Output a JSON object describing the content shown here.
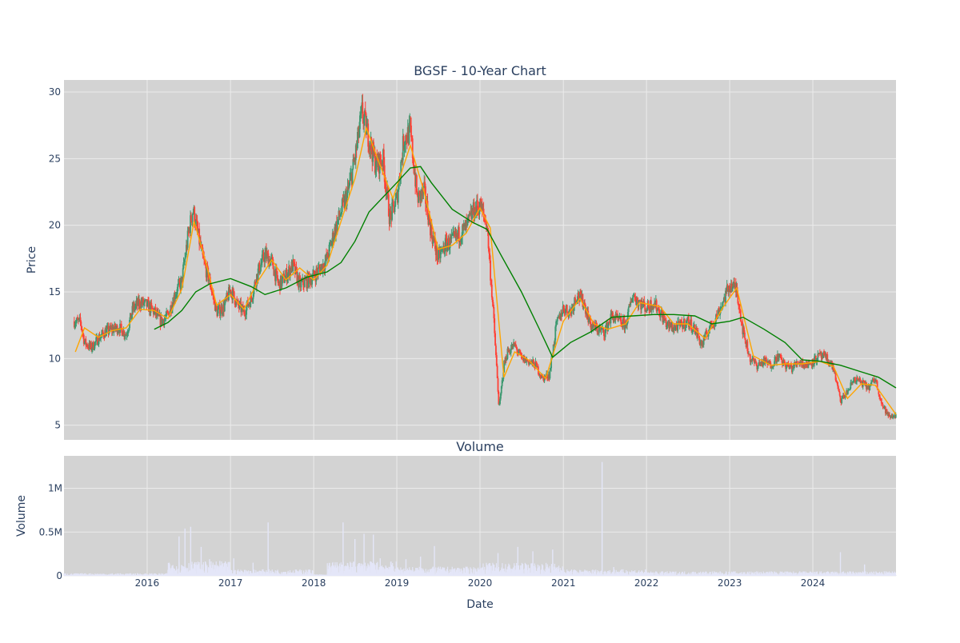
{
  "figure": {
    "title": "BGSF - 10-Year Chart",
    "subplot_title": "Volume"
  },
  "colors": {
    "plot_bg": "#d3d3d3",
    "grid": "#ebebeb",
    "text": "#2a3f5f",
    "up_candle": "#3d9970",
    "down_candle": "#ff4136",
    "ma_short": "orange",
    "ma_long": "green",
    "volume": "#e4e6f8"
  },
  "chart_data": [
    {
      "type": "candlestick",
      "ylabel": "Price",
      "xlabel": "",
      "xlim": [
        "2015-01-01",
        "2024-12-31"
      ],
      "ylim": [
        3.9,
        30.9
      ],
      "yticks": [
        5,
        10,
        15,
        20,
        25,
        30
      ],
      "xticks": [
        "2016-01-01",
        "2017-01-01",
        "2018-01-01",
        "2019-01-01",
        "2020-01-01",
        "2021-01-01",
        "2022-01-01",
        "2023-01-01",
        "2024-01-01"
      ],
      "xtick_labels": [
        "2016",
        "2017",
        "2018",
        "2019",
        "2020",
        "2021",
        "2022",
        "2023",
        "2024"
      ],
      "grid": true,
      "price_path": [
        [
          "2015-01-01",
          13.0
        ],
        [
          "2015-02-15",
          12.8
        ],
        [
          "2015-03-15",
          12.7
        ],
        [
          "2015-04-01",
          11.2
        ],
        [
          "2015-05-01",
          10.8
        ],
        [
          "2015-06-01",
          11.5
        ],
        [
          "2015-07-01",
          12.0
        ],
        [
          "2015-08-01",
          12.2
        ],
        [
          "2015-09-01",
          12.3
        ],
        [
          "2015-10-01",
          11.8
        ],
        [
          "2015-11-01",
          13.8
        ],
        [
          "2015-12-01",
          14.2
        ],
        [
          "2016-01-01",
          14.0
        ],
        [
          "2016-02-01",
          13.5
        ],
        [
          "2016-03-01",
          12.8
        ],
        [
          "2016-04-01",
          13.2
        ],
        [
          "2016-05-01",
          14.8
        ],
        [
          "2016-06-01",
          15.8
        ],
        [
          "2016-07-01",
          19.5
        ],
        [
          "2016-07-20",
          21.2
        ],
        [
          "2016-08-15",
          19.0
        ],
        [
          "2016-09-01",
          17.5
        ],
        [
          "2016-10-01",
          15.8
        ],
        [
          "2016-11-01",
          13.5
        ],
        [
          "2016-12-01",
          13.8
        ],
        [
          "2017-01-01",
          15.2
        ],
        [
          "2017-02-01",
          14.0
        ],
        [
          "2017-03-01",
          13.5
        ],
        [
          "2017-04-01",
          14.5
        ],
        [
          "2017-05-01",
          16.5
        ],
        [
          "2017-06-01",
          17.8
        ],
        [
          "2017-07-01",
          17.2
        ],
        [
          "2017-08-01",
          15.5
        ],
        [
          "2017-09-01",
          16.2
        ],
        [
          "2017-10-01",
          17.0
        ],
        [
          "2017-11-01",
          15.5
        ],
        [
          "2017-12-01",
          15.8
        ],
        [
          "2018-01-01",
          16.2
        ],
        [
          "2018-02-01",
          16.8
        ],
        [
          "2018-03-01",
          17.5
        ],
        [
          "2018-04-01",
          19.5
        ],
        [
          "2018-05-01",
          21.0
        ],
        [
          "2018-06-01",
          22.5
        ],
        [
          "2018-07-01",
          25.0
        ],
        [
          "2018-08-01",
          28.5
        ],
        [
          "2018-09-01",
          26.5
        ],
        [
          "2018-10-01",
          24.5
        ],
        [
          "2018-11-01",
          25.0
        ],
        [
          "2018-12-01",
          20.5
        ],
        [
          "2019-01-01",
          22.0
        ],
        [
          "2019-02-01",
          26.5
        ],
        [
          "2019-03-01",
          27.0
        ],
        [
          "2019-04-01",
          22.0
        ],
        [
          "2019-05-01",
          22.5
        ],
        [
          "2019-06-01",
          19.5
        ],
        [
          "2019-07-01",
          17.5
        ],
        [
          "2019-08-01",
          18.5
        ],
        [
          "2019-09-01",
          18.8
        ],
        [
          "2019-10-01",
          19.3
        ],
        [
          "2019-11-01",
          19.8
        ],
        [
          "2019-12-01",
          21.0
        ],
        [
          "2020-01-01",
          21.5
        ],
        [
          "2020-02-01",
          20.0
        ],
        [
          "2020-03-01",
          13.0
        ],
        [
          "2020-03-25",
          6.2
        ],
        [
          "2020-04-15",
          9.5
        ],
        [
          "2020-05-01",
          10.5
        ],
        [
          "2020-06-01",
          11.0
        ],
        [
          "2020-07-01",
          10.0
        ],
        [
          "2020-08-01",
          9.8
        ],
        [
          "2020-09-01",
          9.5
        ],
        [
          "2020-10-01",
          8.5
        ],
        [
          "2020-11-01",
          8.8
        ],
        [
          "2020-12-01",
          12.5
        ],
        [
          "2021-01-01",
          13.8
        ],
        [
          "2021-02-01",
          13.5
        ],
        [
          "2021-03-01",
          14.8
        ],
        [
          "2021-04-01",
          14.2
        ],
        [
          "2021-05-01",
          12.5
        ],
        [
          "2021-06-01",
          12.2
        ],
        [
          "2021-07-01",
          12.0
        ],
        [
          "2021-08-01",
          13.2
        ],
        [
          "2021-09-01",
          12.8
        ],
        [
          "2021-10-01",
          12.5
        ],
        [
          "2021-11-01",
          14.8
        ],
        [
          "2021-12-01",
          14.2
        ],
        [
          "2022-01-01",
          13.8
        ],
        [
          "2022-02-01",
          14.2
        ],
        [
          "2022-03-01",
          13.5
        ],
        [
          "2022-04-01",
          12.5
        ],
        [
          "2022-05-01",
          12.3
        ],
        [
          "2022-06-01",
          12.5
        ],
        [
          "2022-07-01",
          12.8
        ],
        [
          "2022-08-01",
          12.2
        ],
        [
          "2022-09-01",
          11.0
        ],
        [
          "2022-10-01",
          12.2
        ],
        [
          "2022-11-01",
          13.0
        ],
        [
          "2022-12-01",
          14.2
        ],
        [
          "2023-01-01",
          15.5
        ],
        [
          "2023-02-01",
          15.2
        ],
        [
          "2023-03-01",
          12.0
        ],
        [
          "2023-04-01",
          10.0
        ],
        [
          "2023-05-01",
          9.5
        ],
        [
          "2023-06-01",
          9.8
        ],
        [
          "2023-07-01",
          9.5
        ],
        [
          "2023-08-01",
          10.2
        ],
        [
          "2023-09-01",
          9.5
        ],
        [
          "2023-10-01",
          9.3
        ],
        [
          "2023-11-01",
          9.8
        ],
        [
          "2023-12-01",
          9.5
        ],
        [
          "2024-01-01",
          9.8
        ],
        [
          "2024-02-01",
          10.2
        ],
        [
          "2024-03-01",
          10.0
        ],
        [
          "2024-04-01",
          9.3
        ],
        [
          "2024-05-01",
          6.8
        ],
        [
          "2024-06-01",
          7.5
        ],
        [
          "2024-07-01",
          8.5
        ],
        [
          "2024-08-01",
          8.2
        ],
        [
          "2024-09-01",
          7.8
        ],
        [
          "2024-10-01",
          8.5
        ],
        [
          "2024-11-01",
          6.5
        ],
        [
          "2024-12-01",
          5.6
        ],
        [
          "2024-12-31",
          5.8
        ]
      ],
      "ma_short_path": [
        [
          "2015-02-20",
          10.5
        ],
        [
          "2015-04-01",
          12.3
        ],
        [
          "2015-06-01",
          11.6
        ],
        [
          "2015-08-01",
          12.1
        ],
        [
          "2015-10-01",
          12.3
        ],
        [
          "2015-12-01",
          13.7
        ],
        [
          "2016-02-01",
          13.6
        ],
        [
          "2016-04-01",
          13.0
        ],
        [
          "2016-06-01",
          15.2
        ],
        [
          "2016-07-25",
          20.3
        ],
        [
          "2016-09-15",
          17.2
        ],
        [
          "2016-11-01",
          14.0
        ],
        [
          "2017-01-01",
          14.8
        ],
        [
          "2017-03-01",
          13.7
        ],
        [
          "2017-05-01",
          15.8
        ],
        [
          "2017-07-01",
          17.4
        ],
        [
          "2017-09-01",
          15.9
        ],
        [
          "2017-11-01",
          16.8
        ],
        [
          "2018-01-01",
          15.9
        ],
        [
          "2018-03-01",
          17.0
        ],
        [
          "2018-05-01",
          20.3
        ],
        [
          "2018-07-01",
          23.5
        ],
        [
          "2018-08-20",
          27.3
        ],
        [
          "2018-10-15",
          24.7
        ],
        [
          "2018-12-15",
          22.0
        ],
        [
          "2019-03-01",
          26.0
        ],
        [
          "2019-05-01",
          22.5
        ],
        [
          "2019-07-01",
          18.2
        ],
        [
          "2019-09-01",
          18.5
        ],
        [
          "2019-11-01",
          19.4
        ],
        [
          "2020-01-01",
          21.3
        ],
        [
          "2020-02-15",
          19.8
        ],
        [
          "2020-04-15",
          8.6
        ],
        [
          "2020-06-01",
          10.5
        ],
        [
          "2020-08-01",
          9.9
        ],
        [
          "2020-10-15",
          8.5
        ],
        [
          "2021-01-01",
          12.8
        ],
        [
          "2021-03-15",
          14.5
        ],
        [
          "2021-05-15",
          12.6
        ],
        [
          "2021-07-15",
          12.2
        ],
        [
          "2021-10-01",
          12.6
        ],
        [
          "2021-12-01",
          14.2
        ],
        [
          "2022-03-01",
          13.9
        ],
        [
          "2022-05-01",
          12.6
        ],
        [
          "2022-07-01",
          12.6
        ],
        [
          "2022-09-15",
          11.5
        ],
        [
          "2022-12-01",
          13.8
        ],
        [
          "2023-02-01",
          15.3
        ],
        [
          "2023-04-15",
          10.2
        ],
        [
          "2023-07-01",
          9.5
        ],
        [
          "2023-09-01",
          9.6
        ],
        [
          "2023-11-15",
          9.6
        ],
        [
          "2024-02-01",
          9.8
        ],
        [
          "2024-04-01",
          9.4
        ],
        [
          "2024-06-01",
          7.0
        ],
        [
          "2024-08-01",
          8.1
        ],
        [
          "2024-10-01",
          8.0
        ],
        [
          "2024-12-31",
          5.8
        ]
      ],
      "ma_long_path": [
        [
          "2016-02-01",
          12.2
        ],
        [
          "2016-04-01",
          12.7
        ],
        [
          "2016-06-01",
          13.6
        ],
        [
          "2016-08-01",
          15.0
        ],
        [
          "2016-10-01",
          15.6
        ],
        [
          "2017-01-01",
          16.0
        ],
        [
          "2017-04-01",
          15.4
        ],
        [
          "2017-06-01",
          14.8
        ],
        [
          "2017-09-01",
          15.3
        ],
        [
          "2017-12-01",
          16.1
        ],
        [
          "2018-03-01",
          16.5
        ],
        [
          "2018-05-01",
          17.2
        ],
        [
          "2018-07-01",
          18.8
        ],
        [
          "2018-09-01",
          21.0
        ],
        [
          "2019-01-01",
          23.2
        ],
        [
          "2019-03-01",
          24.3
        ],
        [
          "2019-04-15",
          24.4
        ],
        [
          "2019-06-01",
          23.2
        ],
        [
          "2019-09-01",
          21.2
        ],
        [
          "2019-12-01",
          20.2
        ],
        [
          "2020-02-01",
          19.7
        ],
        [
          "2020-04-01",
          17.8
        ],
        [
          "2020-07-01",
          15.0
        ],
        [
          "2020-09-15",
          12.3
        ],
        [
          "2020-11-15",
          10.1
        ],
        [
          "2021-02-01",
          11.2
        ],
        [
          "2021-05-01",
          12.0
        ],
        [
          "2021-08-01",
          13.1
        ],
        [
          "2021-11-01",
          13.2
        ],
        [
          "2022-02-01",
          13.3
        ],
        [
          "2022-05-01",
          13.3
        ],
        [
          "2022-08-01",
          13.2
        ],
        [
          "2022-10-15",
          12.6
        ],
        [
          "2023-01-01",
          12.8
        ],
        [
          "2023-03-01",
          13.1
        ],
        [
          "2023-06-01",
          12.2
        ],
        [
          "2023-09-01",
          11.2
        ],
        [
          "2023-11-15",
          9.9
        ],
        [
          "2024-02-01",
          9.8
        ],
        [
          "2024-05-01",
          9.5
        ],
        [
          "2024-08-01",
          9.0
        ],
        [
          "2024-10-15",
          8.6
        ],
        [
          "2024-12-31",
          7.8
        ]
      ]
    },
    {
      "type": "bar",
      "ylabel": "Volume",
      "xlabel": "Date",
      "xlim": [
        "2015-01-01",
        "2024-12-31"
      ],
      "ylim": [
        0,
        1370000
      ],
      "yticks": [
        0,
        500000,
        1000000
      ],
      "ytick_labels": [
        "0",
        "0.5M",
        "1M"
      ],
      "grid": true,
      "baseline_level": 12000,
      "active_periods": [
        [
          "2015-01-01",
          "2016-04-01",
          20000
        ],
        [
          "2016-04-01",
          "2017-01-01",
          110000
        ],
        [
          "2017-01-01",
          "2018-01-01",
          50000
        ],
        [
          "2018-03-01",
          "2019-01-01",
          110000
        ],
        [
          "2019-01-01",
          "2020-01-01",
          70000
        ],
        [
          "2020-01-01",
          "2021-01-01",
          100000
        ],
        [
          "2021-01-01",
          "2022-01-01",
          50000
        ],
        [
          "2022-01-01",
          "2024-12-31",
          35000
        ]
      ],
      "spikes": [
        [
          "2016-05-20",
          450000
        ],
        [
          "2016-06-15",
          540000
        ],
        [
          "2016-07-10",
          560000
        ],
        [
          "2016-08-25",
          330000
        ],
        [
          "2016-10-01",
          190000
        ],
        [
          "2016-11-15",
          170000
        ],
        [
          "2017-01-15",
          200000
        ],
        [
          "2017-04-10",
          150000
        ],
        [
          "2017-06-15",
          610000
        ],
        [
          "2018-05-10",
          610000
        ],
        [
          "2018-07-01",
          420000
        ],
        [
          "2018-08-10",
          480000
        ],
        [
          "2018-09-20",
          470000
        ],
        [
          "2018-10-20",
          200000
        ],
        [
          "2019-02-10",
          190000
        ],
        [
          "2019-04-15",
          220000
        ],
        [
          "2019-06-15",
          340000
        ],
        [
          "2020-03-20",
          260000
        ],
        [
          "2020-06-15",
          330000
        ],
        [
          "2020-08-20",
          280000
        ],
        [
          "2020-11-15",
          300000
        ],
        [
          "2021-06-20",
          1300000
        ],
        [
          "2021-08-10",
          100000
        ],
        [
          "2024-05-01",
          270000
        ],
        [
          "2024-08-15",
          130000
        ]
      ]
    }
  ]
}
